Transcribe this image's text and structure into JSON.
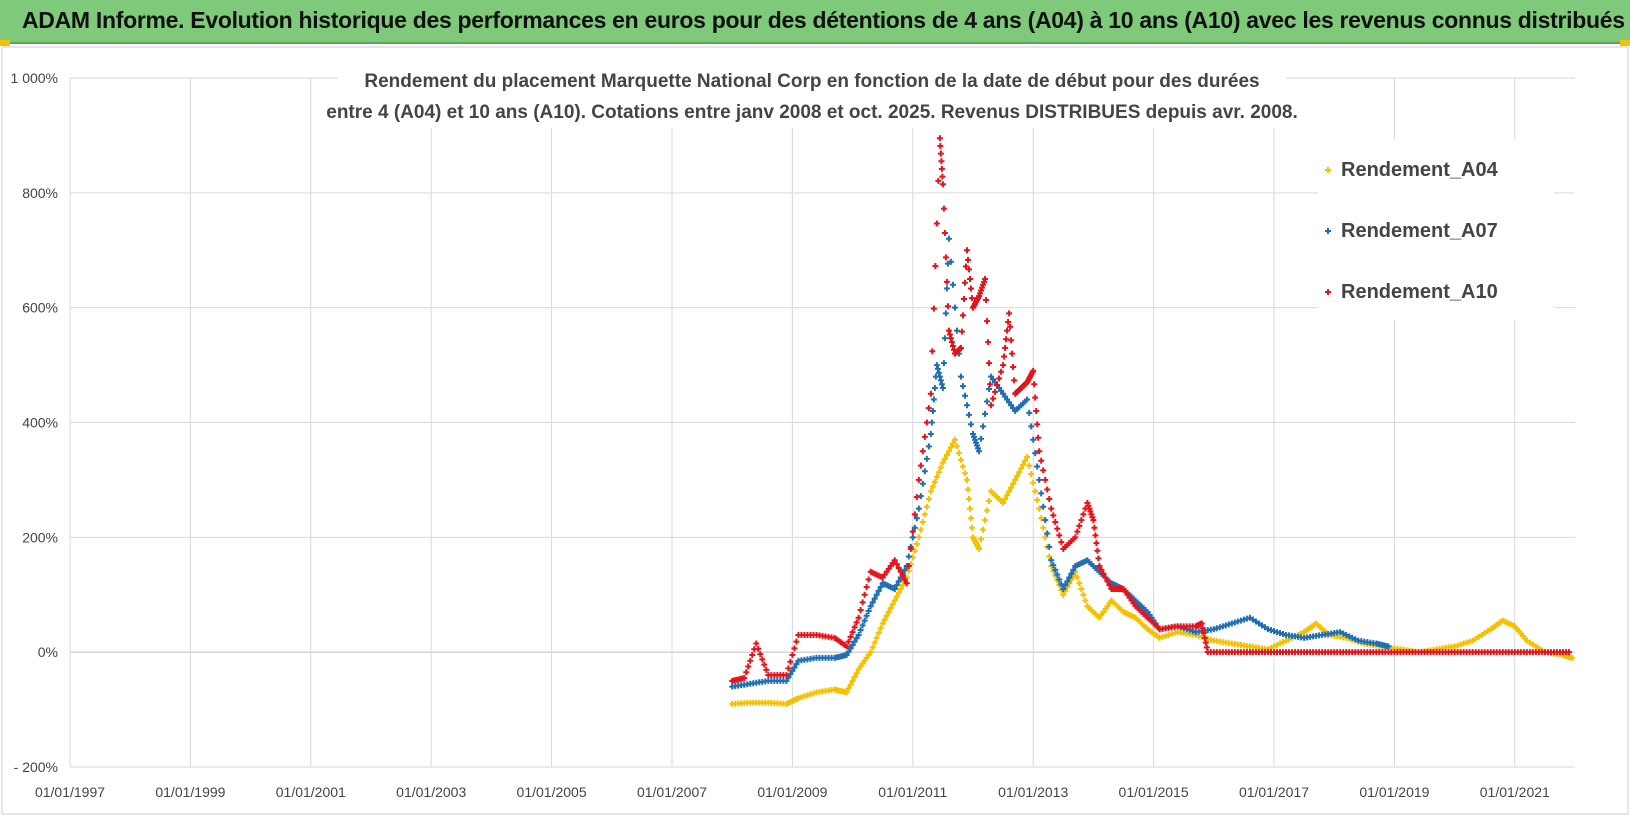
{
  "banner": {
    "title": "ADAM Informe. Evolution historique des performances en euros pour des détentions de 4 ans (A04) à 10 ans (A10) avec les revenus connus distribués"
  },
  "chart_data": {
    "type": "scatter",
    "title_lines": [
      "Rendement du placement Marquette National Corp en fonction de la date de début pour des durées",
      "entre 4 (A04) et 10 ans (A10). Cotations entre janv 2008 et oct. 2025. Revenus DISTRIBUES depuis avr. 2008."
    ],
    "xlabel": "",
    "ylabel": "",
    "x_range": [
      1997.0,
      2022.0
    ],
    "y_range": [
      -200,
      1000
    ],
    "grid": true,
    "legend_position": "top-right",
    "y_ticks": [
      {
        "value": 1000,
        "label": "1 000%"
      },
      {
        "value": 800,
        "label": "800%"
      },
      {
        "value": 600,
        "label": "600%"
      },
      {
        "value": 400,
        "label": "400%"
      },
      {
        "value": 200,
        "label": "200%"
      },
      {
        "value": 0,
        "label": "0%"
      },
      {
        "value": -200,
        "label": "- 200%"
      }
    ],
    "x_ticks": [
      {
        "value": 1997,
        "label": "01/01/1997"
      },
      {
        "value": 1999,
        "label": "01/01/1999"
      },
      {
        "value": 2001,
        "label": "01/01/2001"
      },
      {
        "value": 2003,
        "label": "01/01/2003"
      },
      {
        "value": 2005,
        "label": "01/01/2005"
      },
      {
        "value": 2007,
        "label": "01/01/2007"
      },
      {
        "value": 2009,
        "label": "01/01/2009"
      },
      {
        "value": 2011,
        "label": "01/01/2011"
      },
      {
        "value": 2013,
        "label": "01/01/2013"
      },
      {
        "value": 2015,
        "label": "01/01/2015"
      },
      {
        "value": 2017,
        "label": "01/01/2017"
      },
      {
        "value": 2019,
        "label": "01/01/2019"
      },
      {
        "value": 2021,
        "label": "01/01/2021"
      }
    ],
    "series": [
      {
        "name": "Rendement_A04",
        "color": "#f5c000",
        "points": [
          [
            2008.0,
            -90
          ],
          [
            2008.3,
            -88
          ],
          [
            2008.6,
            -88
          ],
          [
            2008.9,
            -90
          ],
          [
            2009.1,
            -80
          ],
          [
            2009.4,
            -70
          ],
          [
            2009.7,
            -65
          ],
          [
            2009.9,
            -70
          ],
          [
            2010.1,
            -30
          ],
          [
            2010.3,
            0
          ],
          [
            2010.5,
            50
          ],
          [
            2010.7,
            90
          ],
          [
            2010.9,
            130
          ],
          [
            2011.1,
            200
          ],
          [
            2011.3,
            280
          ],
          [
            2011.5,
            330
          ],
          [
            2011.7,
            370
          ],
          [
            2011.9,
            300
          ],
          [
            2012.0,
            200
          ],
          [
            2012.1,
            180
          ],
          [
            2012.3,
            280
          ],
          [
            2012.5,
            260
          ],
          [
            2012.7,
            300
          ],
          [
            2012.9,
            340
          ],
          [
            2013.1,
            250
          ],
          [
            2013.3,
            150
          ],
          [
            2013.5,
            100
          ],
          [
            2013.7,
            140
          ],
          [
            2013.9,
            80
          ],
          [
            2014.1,
            60
          ],
          [
            2014.3,
            90
          ],
          [
            2014.5,
            70
          ],
          [
            2014.7,
            60
          ],
          [
            2014.9,
            40
          ],
          [
            2015.1,
            25
          ],
          [
            2015.4,
            35
          ],
          [
            2015.7,
            30
          ],
          [
            2016.0,
            20
          ],
          [
            2016.3,
            15
          ],
          [
            2016.6,
            10
          ],
          [
            2016.9,
            5
          ],
          [
            2017.2,
            20
          ],
          [
            2017.5,
            35
          ],
          [
            2017.7,
            50
          ],
          [
            2017.9,
            30
          ],
          [
            2018.2,
            25
          ],
          [
            2018.5,
            15
          ],
          [
            2018.8,
            10
          ],
          [
            2019.1,
            5
          ],
          [
            2019.4,
            0
          ],
          [
            2019.7,
            5
          ],
          [
            2020.0,
            10
          ],
          [
            2020.3,
            20
          ],
          [
            2020.6,
            40
          ],
          [
            2020.8,
            55
          ],
          [
            2021.0,
            45
          ],
          [
            2021.2,
            20
          ],
          [
            2021.5,
            0
          ],
          [
            2021.8,
            -5
          ],
          [
            2021.95,
            -10
          ]
        ]
      },
      {
        "name": "Rendement_A07",
        "color": "#1f6fb4",
        "points": [
          [
            2008.0,
            -60
          ],
          [
            2008.3,
            -55
          ],
          [
            2008.6,
            -50
          ],
          [
            2008.9,
            -50
          ],
          [
            2009.1,
            -15
          ],
          [
            2009.4,
            -10
          ],
          [
            2009.7,
            -10
          ],
          [
            2009.9,
            -5
          ],
          [
            2010.1,
            30
          ],
          [
            2010.3,
            80
          ],
          [
            2010.5,
            120
          ],
          [
            2010.7,
            110
          ],
          [
            2010.9,
            150
          ],
          [
            2011.1,
            250
          ],
          [
            2011.3,
            380
          ],
          [
            2011.4,
            500
          ],
          [
            2011.5,
            460
          ],
          [
            2011.6,
            720
          ],
          [
            2011.8,
            480
          ],
          [
            2012.0,
            380
          ],
          [
            2012.1,
            350
          ],
          [
            2012.3,
            480
          ],
          [
            2012.5,
            450
          ],
          [
            2012.7,
            420
          ],
          [
            2012.9,
            440
          ],
          [
            2013.1,
            300
          ],
          [
            2013.3,
            160
          ],
          [
            2013.5,
            110
          ],
          [
            2013.7,
            150
          ],
          [
            2013.9,
            160
          ],
          [
            2014.1,
            140
          ],
          [
            2014.3,
            120
          ],
          [
            2014.5,
            110
          ],
          [
            2014.7,
            90
          ],
          [
            2014.9,
            70
          ],
          [
            2015.1,
            40
          ],
          [
            2015.4,
            45
          ],
          [
            2015.7,
            35
          ],
          [
            2016.0,
            40
          ],
          [
            2016.3,
            50
          ],
          [
            2016.6,
            60
          ],
          [
            2016.9,
            40
          ],
          [
            2017.2,
            30
          ],
          [
            2017.5,
            25
          ],
          [
            2017.8,
            30
          ],
          [
            2018.1,
            35
          ],
          [
            2018.4,
            20
          ],
          [
            2018.7,
            15
          ],
          [
            2018.9,
            10
          ]
        ]
      },
      {
        "name": "Rendement_A10",
        "color": "#e3141b",
        "points": [
          [
            2008.0,
            -50
          ],
          [
            2008.2,
            -45
          ],
          [
            2008.4,
            15
          ],
          [
            2008.6,
            -40
          ],
          [
            2008.9,
            -40
          ],
          [
            2009.1,
            30
          ],
          [
            2009.4,
            30
          ],
          [
            2009.7,
            25
          ],
          [
            2009.9,
            10
          ],
          [
            2010.1,
            60
          ],
          [
            2010.3,
            140
          ],
          [
            2010.5,
            130
          ],
          [
            2010.7,
            160
          ],
          [
            2010.9,
            120
          ],
          [
            2011.1,
            300
          ],
          [
            2011.3,
            450
          ],
          [
            2011.45,
            895
          ],
          [
            2011.5,
            815
          ],
          [
            2011.6,
            560
          ],
          [
            2011.7,
            520
          ],
          [
            2011.8,
            530
          ],
          [
            2011.9,
            700
          ],
          [
            2012.0,
            600
          ],
          [
            2012.1,
            620
          ],
          [
            2012.2,
            650
          ],
          [
            2012.3,
            430
          ],
          [
            2012.5,
            500
          ],
          [
            2012.6,
            590
          ],
          [
            2012.7,
            450
          ],
          [
            2012.8,
            460
          ],
          [
            2012.9,
            470
          ],
          [
            2013.0,
            490
          ],
          [
            2013.1,
            350
          ],
          [
            2013.3,
            250
          ],
          [
            2013.5,
            180
          ],
          [
            2013.7,
            200
          ],
          [
            2013.9,
            260
          ],
          [
            2014.0,
            230
          ],
          [
            2014.1,
            150
          ],
          [
            2014.3,
            110
          ],
          [
            2014.5,
            110
          ],
          [
            2014.7,
            80
          ],
          [
            2014.9,
            60
          ],
          [
            2015.1,
            40
          ],
          [
            2015.4,
            45
          ],
          [
            2015.7,
            45
          ],
          [
            2015.8,
            50
          ],
          [
            2015.9,
            0
          ],
          [
            2016.2,
            0
          ],
          [
            2016.5,
            0
          ],
          [
            2016.8,
            0
          ],
          [
            2017.1,
            0
          ],
          [
            2017.4,
            0
          ],
          [
            2017.7,
            0
          ],
          [
            2018.0,
            0
          ],
          [
            2018.3,
            0
          ],
          [
            2018.6,
            0
          ],
          [
            2018.9,
            0
          ],
          [
            2019.2,
            0
          ],
          [
            2019.5,
            0
          ],
          [
            2019.8,
            0
          ],
          [
            2020.1,
            0
          ],
          [
            2020.4,
            0
          ],
          [
            2020.7,
            0
          ],
          [
            2021.0,
            0
          ],
          [
            2021.3,
            0
          ],
          [
            2021.6,
            0
          ],
          [
            2021.9,
            0
          ]
        ]
      }
    ]
  }
}
